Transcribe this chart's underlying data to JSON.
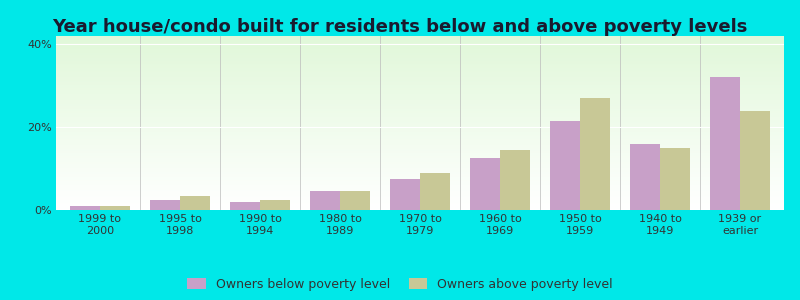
{
  "title": "Year house/condo built for residents below and above poverty levels",
  "categories": [
    "1999 to\n2000",
    "1995 to\n1998",
    "1990 to\n1994",
    "1980 to\n1989",
    "1970 to\n1979",
    "1960 to\n1969",
    "1950 to\n1959",
    "1940 to\n1949",
    "1939 or\nearlier"
  ],
  "below_poverty": [
    1.0,
    2.5,
    2.0,
    4.5,
    7.5,
    12.5,
    21.5,
    16.0,
    32.0
  ],
  "above_poverty": [
    1.0,
    3.5,
    2.5,
    4.5,
    9.0,
    14.5,
    27.0,
    15.0,
    24.0
  ],
  "below_color": "#c8a0c8",
  "above_color": "#c8c896",
  "background_outer": "#00e8e8",
  "ylim": [
    0,
    42
  ],
  "yticks": [
    0,
    20,
    40
  ],
  "ytick_labels": [
    "0%",
    "20%",
    "40%"
  ],
  "bar_width": 0.38,
  "legend_below": "Owners below poverty level",
  "legend_above": "Owners above poverty level",
  "title_fontsize": 13,
  "tick_fontsize": 8,
  "legend_fontsize": 9
}
